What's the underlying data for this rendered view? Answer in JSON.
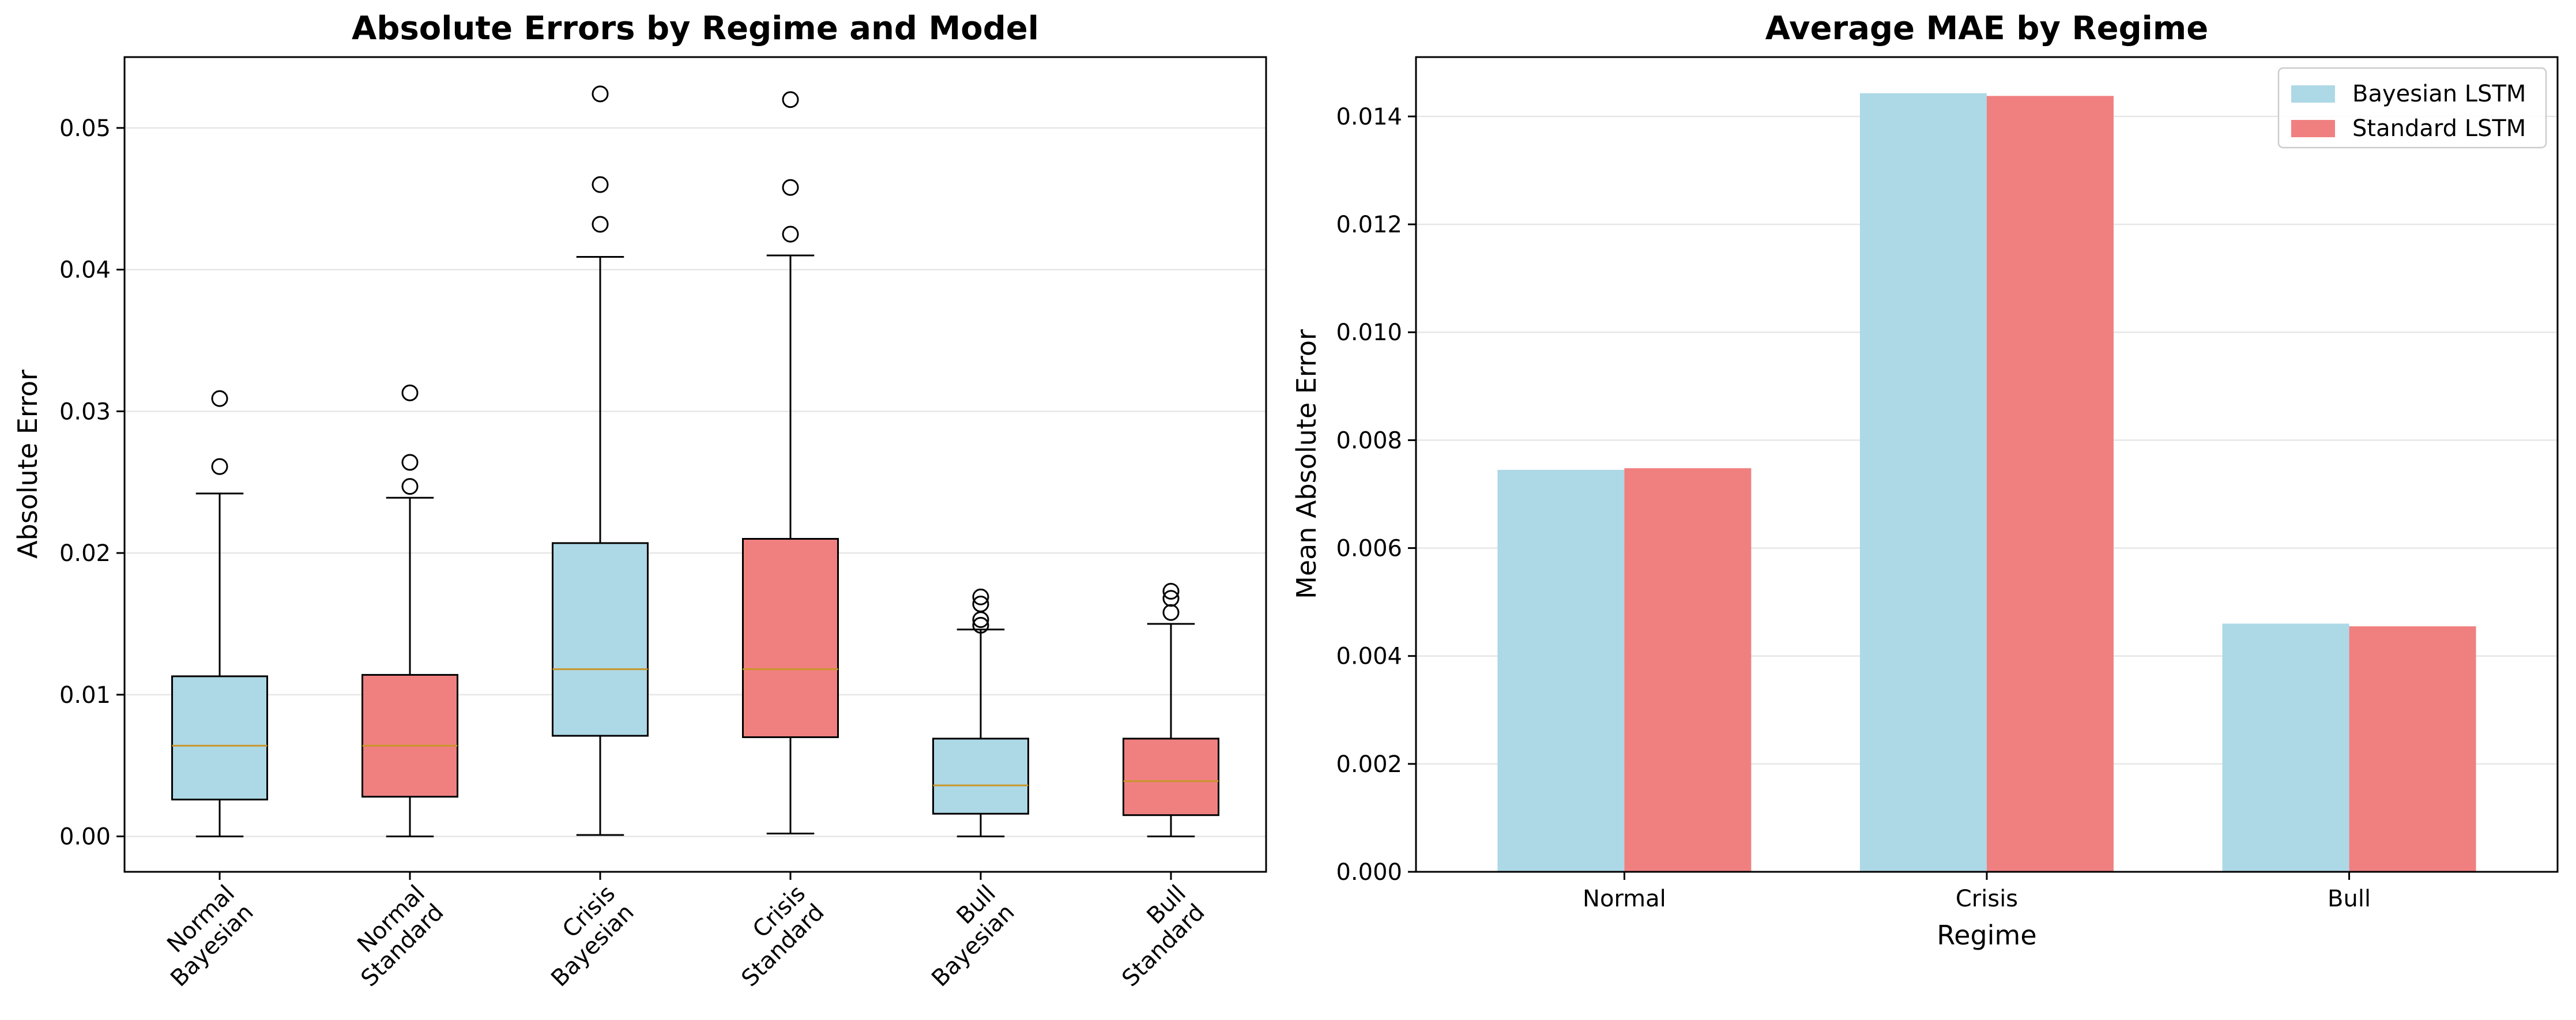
{
  "chart_data": [
    {
      "type": "box",
      "title": "Absolute Errors by Regime and Model",
      "xlabel": "",
      "ylabel": "Absolute Error",
      "ylim": [
        -0.0025,
        0.055
      ],
      "yticks": [
        "0.00",
        "0.01",
        "0.02",
        "0.03",
        "0.04",
        "0.05"
      ],
      "grid": true,
      "categories": [
        [
          "Normal",
          "Bayesian"
        ],
        [
          "Normal",
          "Standard"
        ],
        [
          "Crisis",
          "Bayesian"
        ],
        [
          "Crisis",
          "Standard"
        ],
        [
          "Bull",
          "Bayesian"
        ],
        [
          "Bull",
          "Standard"
        ]
      ],
      "boxes": [
        {
          "min": 0.0,
          "q1": 0.0026,
          "median": 0.0064,
          "q3": 0.0113,
          "max": 0.0242,
          "outliers": [
            0.0261,
            0.0309
          ],
          "color": "#add8e6"
        },
        {
          "min": 0.0,
          "q1": 0.0028,
          "median": 0.0064,
          "q3": 0.0114,
          "max": 0.0239,
          "outliers": [
            0.0247,
            0.0264,
            0.0313
          ],
          "color": "#f08080"
        },
        {
          "min": 0.0001,
          "q1": 0.0071,
          "median": 0.0118,
          "q3": 0.0207,
          "max": 0.0409,
          "outliers": [
            0.0432,
            0.046,
            0.0524
          ],
          "color": "#add8e6"
        },
        {
          "min": 0.0002,
          "q1": 0.007,
          "median": 0.0118,
          "q3": 0.021,
          "max": 0.041,
          "outliers": [
            0.0425,
            0.0458,
            0.052
          ],
          "color": "#f08080"
        },
        {
          "min": 0.0,
          "q1": 0.0016,
          "median": 0.0036,
          "q3": 0.0069,
          "max": 0.0146,
          "outliers": [
            0.0149,
            0.0153,
            0.0164,
            0.0169
          ],
          "color": "#add8e6"
        },
        {
          "min": 0.0,
          "q1": 0.0015,
          "median": 0.0039,
          "q3": 0.0069,
          "max": 0.015,
          "outliers": [
            0.0158,
            0.0168,
            0.0173
          ],
          "color": "#f08080"
        }
      ]
    },
    {
      "type": "bar",
      "title": "Average MAE by Regime",
      "xlabel": "Regime",
      "ylabel": "Mean Absolute Error",
      "ylim": [
        0,
        0.0151
      ],
      "yticks": [
        "0.000",
        "0.002",
        "0.004",
        "0.006",
        "0.008",
        "0.010",
        "0.012",
        "0.014"
      ],
      "grid": true,
      "legend": "top-right",
      "categories": [
        "Normal",
        "Crisis",
        "Bull"
      ],
      "series": [
        {
          "name": "Bayesian LSTM",
          "values": [
            0.00745,
            0.01443,
            0.0046
          ],
          "color": "#add8e6"
        },
        {
          "name": "Standard LSTM",
          "values": [
            0.00748,
            0.01438,
            0.00455
          ],
          "color": "#f08080"
        }
      ]
    }
  ]
}
